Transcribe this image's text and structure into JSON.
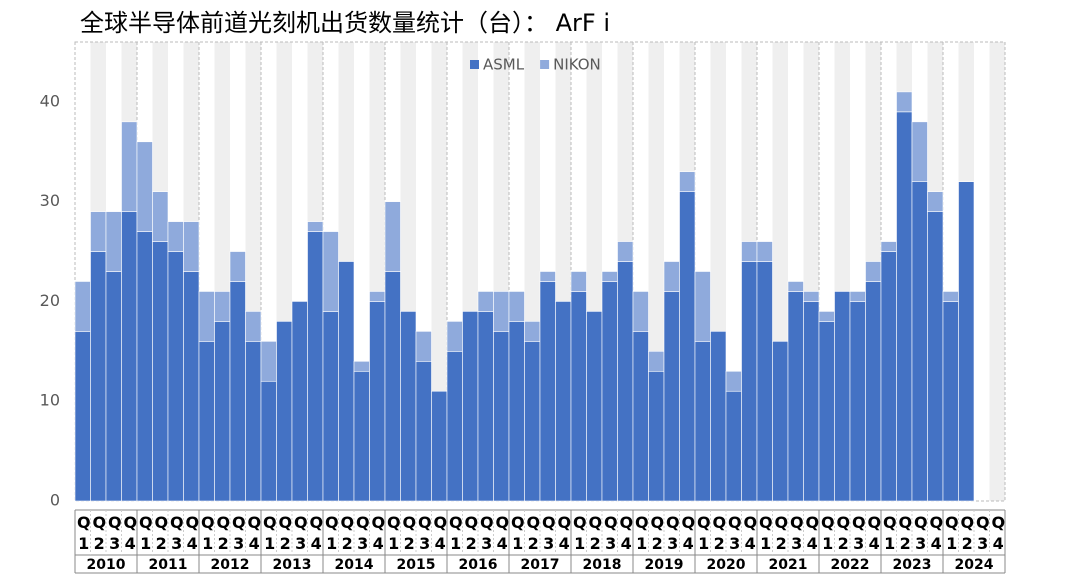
{
  "chart_data": {
    "type": "stacked_bar",
    "title": "全球半导体前道光刻机出货数量统计（台）： ArF i",
    "categories": [
      "Q1",
      "Q2",
      "Q3",
      "Q4",
      "Q1",
      "Q2",
      "Q3",
      "Q4",
      "Q1",
      "Q2",
      "Q3",
      "Q4",
      "Q1",
      "Q2",
      "Q3",
      "Q4",
      "Q1",
      "Q2",
      "Q3",
      "Q4",
      "Q1",
      "Q2",
      "Q3",
      "Q4",
      "Q1",
      "Q2",
      "Q3",
      "Q4",
      "Q1",
      "Q2",
      "Q3",
      "Q4",
      "Q1",
      "Q2",
      "Q3",
      "Q4",
      "Q1",
      "Q2",
      "Q3",
      "Q4",
      "Q1",
      "Q2",
      "Q3",
      "Q4",
      "Q1",
      "Q2",
      "Q3",
      "Q4",
      "Q1",
      "Q2",
      "Q3",
      "Q4",
      "Q1",
      "Q2",
      "Q3",
      "Q4",
      "Q1",
      "Q2",
      "Q3",
      "Q4"
    ],
    "groups": [
      "2010",
      "2011",
      "2012",
      "2013",
      "2014",
      "2015",
      "2016",
      "2017",
      "2018",
      "2019",
      "2020",
      "2021",
      "2022",
      "2023",
      "2024"
    ],
    "series": [
      {
        "name": "ASML",
        "color": "#4472c4",
        "values": [
          17,
          25,
          23,
          29,
          27,
          26,
          25,
          23,
          16,
          18,
          22,
          16,
          12,
          18,
          20,
          27,
          19,
          24,
          13,
          20,
          23,
          19,
          14,
          11,
          15,
          19,
          19,
          17,
          18,
          16,
          22,
          20,
          21,
          19,
          22,
          24,
          17,
          13,
          21,
          31,
          16,
          17,
          11,
          24,
          24,
          16,
          21,
          20,
          18,
          21,
          20,
          22,
          25,
          39,
          32,
          29,
          20,
          32,
          null,
          null
        ]
      },
      {
        "name": "NIKON",
        "color": "#8faadc",
        "values": [
          5,
          4,
          6,
          9,
          9,
          5,
          3,
          5,
          5,
          3,
          3,
          3,
          4,
          0,
          0,
          1,
          8,
          0,
          1,
          1,
          7,
          0,
          3,
          0,
          3,
          0,
          2,
          4,
          3,
          2,
          1,
          0,
          2,
          0,
          1,
          2,
          4,
          2,
          3,
          2,
          7,
          0,
          2,
          2,
          2,
          0,
          1,
          1,
          1,
          0,
          1,
          2,
          1,
          2,
          6,
          2,
          1,
          0,
          null,
          null
        ]
      }
    ],
    "ylim": [
      0,
      46
    ],
    "yticks": [
      0,
      10,
      20,
      30,
      40
    ],
    "legend": "upper center",
    "stripes": true
  }
}
